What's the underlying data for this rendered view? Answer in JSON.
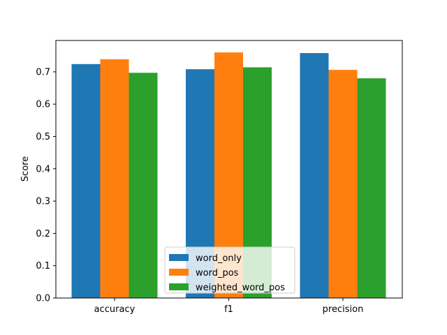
{
  "chart_data": {
    "type": "bar",
    "categories": [
      "accuracy",
      "f1",
      "precision"
    ],
    "series": [
      {
        "name": "word_only",
        "values": [
          0.724,
          0.708,
          0.758
        ],
        "color": "#1f77b4"
      },
      {
        "name": "word_pos",
        "values": [
          0.739,
          0.76,
          0.706
        ],
        "color": "#ff7f0e"
      },
      {
        "name": "weighted_word_pos",
        "values": [
          0.697,
          0.714,
          0.68
        ],
        "color": "#2ca02c"
      }
    ],
    "title": "",
    "xlabel": "",
    "ylabel": "Score",
    "ylim": [
      0,
      0.797
    ],
    "yticks": [
      0.0,
      0.1,
      0.2,
      0.3,
      0.4,
      0.5,
      0.6,
      0.7
    ],
    "ytick_labels": [
      "0.0",
      "0.1",
      "0.2",
      "0.3",
      "0.4",
      "0.5",
      "0.6",
      "0.7"
    ],
    "grid": false,
    "legend_position": "bottom-center"
  }
}
